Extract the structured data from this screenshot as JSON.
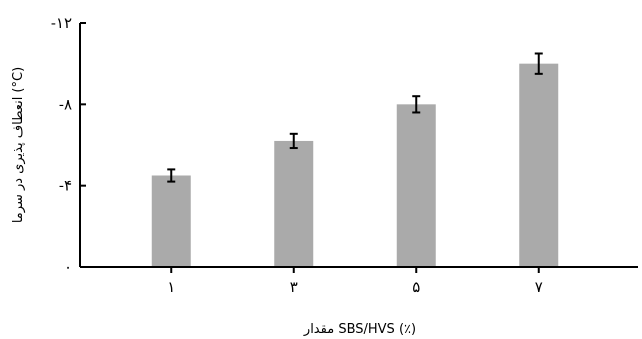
{
  "chart_data": {
    "type": "bar",
    "title": "",
    "xlabel": "مقدار SBS/HVS (٪)",
    "ylabel": "انعطاف پذیری در سرما (°C)",
    "categories": [
      "۱",
      "۳",
      "۵",
      "۷"
    ],
    "values": [
      -4.5,
      -6.2,
      -8.0,
      -10.0
    ],
    "errors": [
      0.3,
      0.35,
      0.4,
      0.5
    ],
    "ylim": [
      0,
      -12
    ],
    "y_ticks": [
      0,
      -4,
      -8,
      -12
    ],
    "y_tick_labels": [
      "۰",
      "-۴",
      "-۸",
      "-۱۲"
    ],
    "grid": false,
    "bar_color": "#aaaaaa",
    "axis_color": "#000000"
  }
}
